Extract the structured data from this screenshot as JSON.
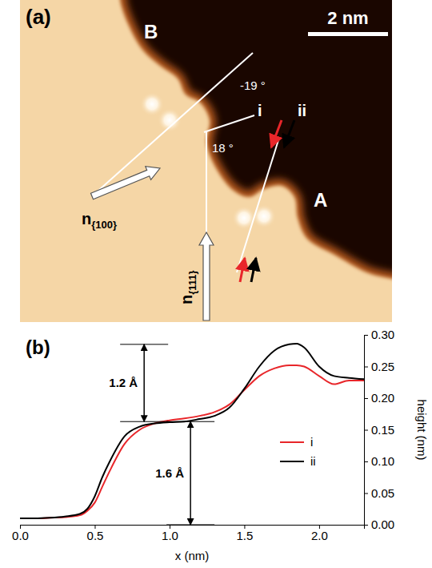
{
  "chart_data": [
    {
      "type": "image",
      "panel_label": "(a)",
      "scale_bar": "2 nm",
      "labels": [
        "B",
        "A",
        "i",
        "ii",
        "-19 °",
        "18 °"
      ],
      "normals": [
        {
          "symbol": "n",
          "subscript": "{100}"
        },
        {
          "symbol": "n",
          "subscript": "{111}"
        }
      ]
    },
    {
      "type": "line",
      "panel_label": "(b)",
      "x_label": "x (nm)",
      "y_label": "height (nm)",
      "x": [
        0,
        0.1,
        0.2,
        0.3,
        0.4,
        0.45,
        0.5,
        0.55,
        0.6,
        0.7,
        0.8,
        0.9,
        1.0,
        1.1,
        1.2,
        1.3,
        1.4,
        1.5,
        1.6,
        1.7,
        1.8,
        1.85,
        1.9,
        2.0,
        2.1,
        2.2,
        2.3
      ],
      "series": [
        {
          "name": "i",
          "color": "#e8262a",
          "values": [
            0.01,
            0.01,
            0.011,
            0.012,
            0.015,
            0.022,
            0.035,
            0.06,
            0.085,
            0.128,
            0.15,
            0.16,
            0.165,
            0.168,
            0.172,
            0.178,
            0.19,
            0.213,
            0.235,
            0.247,
            0.252,
            0.252,
            0.25,
            0.235,
            0.222,
            0.228,
            0.228
          ]
        },
        {
          "name": "ii",
          "color": "#000000",
          "values": [
            0.01,
            0.01,
            0.011,
            0.013,
            0.017,
            0.025,
            0.045,
            0.075,
            0.1,
            0.14,
            0.155,
            0.16,
            0.162,
            0.163,
            0.167,
            0.172,
            0.185,
            0.215,
            0.25,
            0.275,
            0.285,
            0.286,
            0.28,
            0.25,
            0.235,
            0.232,
            0.23
          ]
        }
      ],
      "xlim": [
        0,
        2.3
      ],
      "xticks": [
        {
          "value": 0,
          "label": "0.0"
        },
        0.5,
        {
          "value": 1,
          "label": "1.0"
        },
        1.5,
        {
          "value": 2,
          "label": "2.0"
        }
      ],
      "ylim": [
        0,
        0.3
      ],
      "yticks": [
        {
          "value": 0,
          "label": "0.00"
        },
        0.05,
        {
          "value": 0.1,
          "label": "0.10"
        },
        0.15,
        {
          "value": 0.2,
          "label": "0.20"
        },
        0.25,
        {
          "value": 0.3,
          "label": "0.30"
        }
      ],
      "legend": "lower right",
      "annotations": [
        {
          "text": "1.2 Å",
          "x": 0.83,
          "y": [
            0.163,
            0.285
          ]
        },
        {
          "text": "1.6 Å",
          "x": 1.14,
          "y": [
            0,
            0.163
          ]
        }
      ]
    }
  ]
}
